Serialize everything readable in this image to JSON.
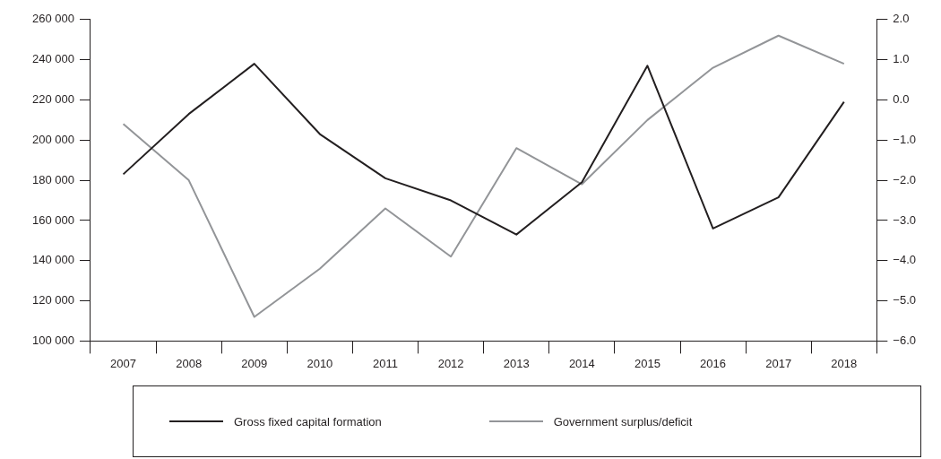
{
  "chart_data": {
    "type": "line",
    "categories": [
      "2007",
      "2008",
      "2009",
      "2010",
      "2011",
      "2012",
      "2013",
      "2014",
      "2015",
      "2016",
      "2017",
      "2018"
    ],
    "series": [
      {
        "name": "Gross fixed capital formation",
        "color": "#231f20",
        "values": [
          183000,
          213000,
          238000,
          203000,
          181000,
          170000,
          153000,
          179000,
          237000,
          156000,
          171500,
          219000
        ]
      },
      {
        "name": "Government surplus/deficit",
        "color": "#939598",
        "axis": "y2",
        "values": [
          -0.6,
          -2.0,
          -5.4,
          -4.2,
          -2.7,
          -3.9,
          -1.2,
          -2.1,
          -0.5,
          0.8,
          1.6,
          0.9
        ]
      }
    ],
    "ylim": [
      100000,
      260000
    ],
    "yticks": [
      {
        "value": 100000,
        "label": "100 000"
      },
      {
        "value": 120000,
        "label": "120 000"
      },
      {
        "value": 140000,
        "label": "140 000"
      },
      {
        "value": 160000,
        "label": "160 000"
      },
      {
        "value": 180000,
        "label": "180 000"
      },
      {
        "value": 200000,
        "label": "200 000"
      },
      {
        "value": 220000,
        "label": "220 000"
      },
      {
        "value": 240000,
        "label": "240 000"
      },
      {
        "value": 260000,
        "label": "260 000"
      }
    ],
    "y2lim": [
      -6,
      2
    ],
    "y2ticks": [
      {
        "value": -6,
        "label": "−6.0"
      },
      {
        "value": -5,
        "label": "−5.0"
      },
      {
        "value": -4,
        "label": "−4.0"
      },
      {
        "value": -3,
        "label": "−3.0"
      },
      {
        "value": -2,
        "label": "−2.0"
      },
      {
        "value": -1,
        "label": "−1.0"
      },
      {
        "value": 0,
        "label": "0.0"
      },
      {
        "value": 1,
        "label": "1.0"
      },
      {
        "value": 2,
        "label": "2.0"
      }
    ],
    "legend": "bottom",
    "marker": "none",
    "line_style": "solid"
  }
}
